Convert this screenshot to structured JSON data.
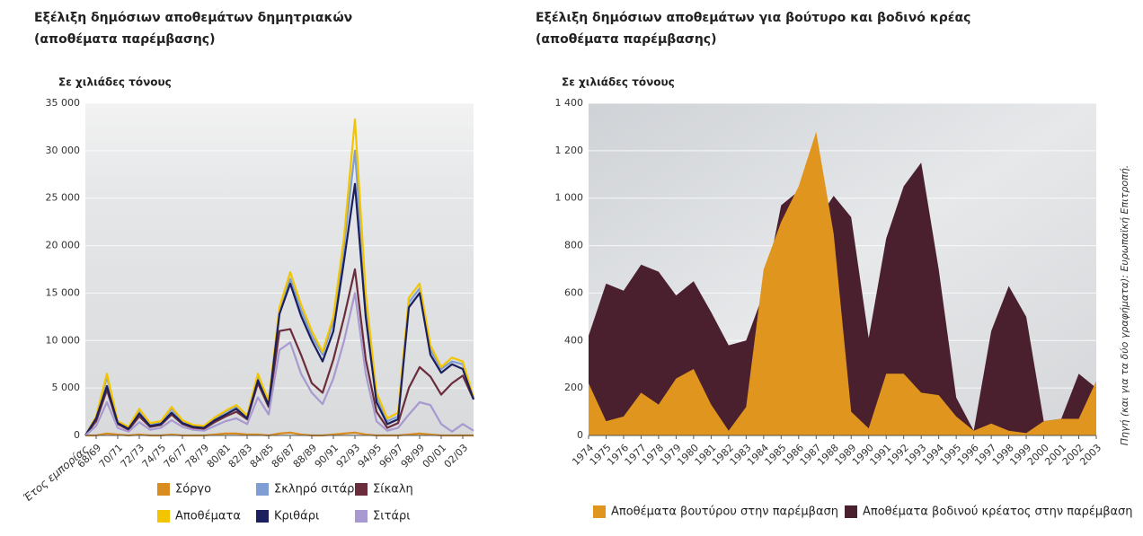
{
  "chart_data": [
    {
      "type": "line",
      "title": [
        "Εξέλιξη δημόσιων αποθεμάτων δημητριακών",
        "(αποθέματα παρέμβασης)"
      ],
      "y_label": "Σε χιλιάδες τόνους",
      "x_label": "Έτος εμπορίας",
      "categories": [
        null,
        "68/69",
        null,
        "70/71",
        null,
        "72/73",
        null,
        "74/75",
        null,
        "76/77",
        null,
        "78/79",
        null,
        "80/81",
        null,
        "82/83",
        null,
        "84/85",
        null,
        "86/87",
        null,
        "88/89",
        null,
        "90/91",
        null,
        "92/93",
        null,
        "94/95",
        null,
        "96/97",
        null,
        "98/99",
        null,
        "00/01",
        null,
        "02/03",
        null
      ],
      "ylim": [
        0,
        35000
      ],
      "yticks": [
        0,
        {
          "value": 5000,
          "label": "5 000"
        },
        {
          "value": 10000,
          "label": "10 000"
        },
        {
          "value": 15000,
          "label": "15 000"
        },
        {
          "value": 20000,
          "label": "20 000"
        },
        {
          "value": 25000,
          "label": "25 000"
        },
        {
          "value": 30000,
          "label": "30 000"
        },
        {
          "value": 35000,
          "label": "35 000"
        }
      ],
      "grid": true,
      "series": [
        {
          "name": "Σόργο",
          "color": "#d98c1f",
          "values": [
            0,
            0,
            200,
            100,
            0,
            100,
            0,
            0,
            100,
            0,
            0,
            0,
            100,
            200,
            200,
            100,
            100,
            0,
            200,
            300,
            100,
            0,
            0,
            100,
            200,
            300,
            100,
            0,
            0,
            0,
            100,
            200,
            100,
            0,
            0,
            0,
            0
          ]
        },
        {
          "name": "Σκληρό σιτάρι",
          "color": "#7f9fd4",
          "values": [
            0,
            1900,
            6200,
            1400,
            800,
            2600,
            1200,
            1400,
            2800,
            1500,
            1000,
            900,
            1800,
            2500,
            3000,
            2000,
            6200,
            3400,
            13000,
            16500,
            13200,
            10500,
            8500,
            12000,
            20000,
            30000,
            14000,
            4000,
            1500,
            2000,
            14000,
            15500,
            9000,
            7000,
            7800,
            7500,
            3800
          ]
        },
        {
          "name": "Σίκαλη",
          "color": "#6b2c3c",
          "values": [
            0,
            1500,
            4800,
            1200,
            600,
            2000,
            900,
            1100,
            2200,
            1200,
            800,
            700,
            1400,
            2000,
            2500,
            1700,
            5500,
            3000,
            11000,
            11200,
            8500,
            5500,
            4500,
            8000,
            12500,
            17500,
            8000,
            2500,
            800,
            1300,
            5000,
            7200,
            6200,
            4300,
            5500,
            6300,
            3800
          ]
        },
        {
          "name": "Αποθέματα",
          "color": "#f2c500",
          "values": [
            0,
            2000,
            6500,
            1500,
            900,
            2800,
            1300,
            1500,
            3000,
            1600,
            1100,
            1000,
            1900,
            2600,
            3200,
            2100,
            6500,
            3600,
            13500,
            17200,
            13800,
            11000,
            8800,
            12500,
            21000,
            33300,
            15000,
            4500,
            1800,
            2400,
            14500,
            16000,
            9500,
            7200,
            8200,
            7800,
            4000
          ]
        },
        {
          "name": "Κριθάρι",
          "color": "#1b1f5e",
          "values": [
            0,
            1800,
            5200,
            1300,
            700,
            2300,
            1000,
            1200,
            2400,
            1300,
            900,
            800,
            1600,
            2200,
            2800,
            1800,
            5800,
            3200,
            12800,
            16000,
            12600,
            10000,
            7800,
            11000,
            18500,
            26500,
            12500,
            3500,
            1200,
            1700,
            13500,
            15000,
            8500,
            6600,
            7500,
            7000,
            3800
          ]
        },
        {
          "name": "Σιτάρι",
          "color": "#a89ad0",
          "values": [
            0,
            1000,
            3500,
            800,
            400,
            1400,
            600,
            800,
            1600,
            900,
            600,
            500,
            1000,
            1500,
            1800,
            1200,
            4000,
            2200,
            9000,
            9800,
            6500,
            4500,
            3300,
            6000,
            10000,
            15000,
            6500,
            1500,
            500,
            800,
            2200,
            3500,
            3200,
            1200,
            400,
            1200,
            500
          ]
        }
      ]
    },
    {
      "type": "area",
      "title": [
        "Εξέλιξη δημόσιων αποθεμάτων για βούτυρο και βοδινό κρέας",
        "(αποθέματα παρέμβασης)"
      ],
      "y_label": "Σε χιλιάδες τόνους",
      "source": "Πηγή (και για τα δύο γραφήματα): Ευρωπαϊκή Επιτροπή.",
      "categories": [
        "1974",
        "1975",
        "1976",
        "1977",
        "1978",
        "1979",
        "1980",
        "1981",
        "1982",
        "1983",
        "1984",
        "1985",
        "1986",
        "1987",
        "1988",
        "1989",
        "1990",
        "1991",
        "1992",
        "1993",
        "1994",
        "1995",
        "1996",
        "1997",
        "1998",
        "1999",
        "2000",
        "2001",
        "2002",
        "2003"
      ],
      "ylim": [
        0,
        1400
      ],
      "yticks": [
        0,
        200,
        400,
        600,
        800,
        {
          "value": 1000,
          "label": "1 000"
        },
        {
          "value": 1200,
          "label": "1 200"
        },
        {
          "value": 1400,
          "label": "1 400"
        }
      ],
      "grid": true,
      "series": [
        {
          "name": "Αποθέματα βουτύρου στην παρέμβαση",
          "color": "#e0961e",
          "values": [
            220,
            60,
            80,
            180,
            130,
            240,
            280,
            130,
            20,
            120,
            700,
            900,
            1050,
            1280,
            850,
            100,
            30,
            260,
            260,
            180,
            170,
            80,
            20,
            50,
            20,
            10,
            60,
            70,
            70,
            230
          ]
        },
        {
          "name": "Αποθέματα βοδινού κρέατος στην παρέμβαση",
          "color": "#4a1f2e",
          "values": [
            420,
            640,
            610,
            720,
            690,
            590,
            650,
            520,
            380,
            400,
            600,
            970,
            1030,
            900,
            1010,
            920,
            410,
            830,
            1050,
            1150,
            700,
            160,
            20,
            440,
            630,
            500,
            60,
            70,
            260,
            200
          ]
        }
      ]
    }
  ]
}
